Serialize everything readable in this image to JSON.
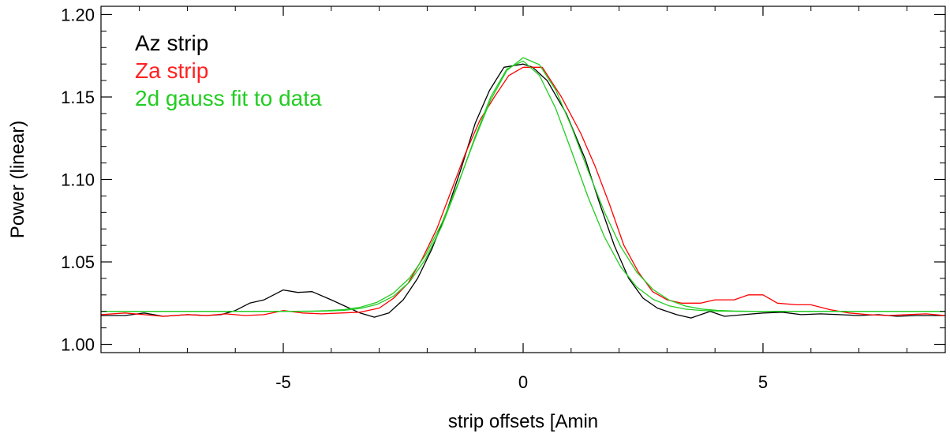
{
  "chart_data": {
    "type": "line",
    "title": "",
    "xlabel": "strip offsets [Amin",
    "ylabel": "Power (linear)",
    "xlim": [
      -8.8,
      8.8
    ],
    "ylim": [
      0.995,
      1.205
    ],
    "x_ticks": [
      -5,
      0,
      5
    ],
    "x_tick_labels": [
      "-5",
      "0",
      "5"
    ],
    "y_ticks": [
      1.0,
      1.05,
      1.1,
      1.15,
      1.2
    ],
    "y_tick_labels": [
      "1.00",
      "1.05",
      "1.10",
      "1.15",
      "1.20"
    ],
    "grid": false,
    "legend_position": "top-left",
    "series": [
      {
        "name": "Az strip",
        "color": "#000000",
        "points": [
          [
            -8.8,
            1.0175
          ],
          [
            -8.3,
            1.0175
          ],
          [
            -7.9,
            1.019
          ],
          [
            -7.5,
            1.017
          ],
          [
            -7.0,
            1.018
          ],
          [
            -6.6,
            1.0175
          ],
          [
            -6.3,
            1.018
          ],
          [
            -6.0,
            1.0205
          ],
          [
            -5.7,
            1.025
          ],
          [
            -5.4,
            1.027
          ],
          [
            -5.0,
            1.033
          ],
          [
            -4.7,
            1.0315
          ],
          [
            -4.4,
            1.032
          ],
          [
            -4.0,
            1.027
          ],
          [
            -3.7,
            1.023
          ],
          [
            -3.4,
            1.019
          ],
          [
            -3.1,
            1.0165
          ],
          [
            -2.8,
            1.019
          ],
          [
            -2.5,
            1.027
          ],
          [
            -2.2,
            1.04
          ],
          [
            -1.9,
            1.058
          ],
          [
            -1.6,
            1.08
          ],
          [
            -1.3,
            1.106
          ],
          [
            -1.0,
            1.134
          ],
          [
            -0.7,
            1.154
          ],
          [
            -0.4,
            1.168
          ],
          [
            0.0,
            1.17
          ],
          [
            0.2,
            1.168
          ],
          [
            0.5,
            1.16
          ],
          [
            0.9,
            1.14
          ],
          [
            1.3,
            1.112
          ],
          [
            1.6,
            1.085
          ],
          [
            1.9,
            1.06
          ],
          [
            2.2,
            1.04
          ],
          [
            2.5,
            1.028
          ],
          [
            2.8,
            1.022
          ],
          [
            3.2,
            1.018
          ],
          [
            3.5,
            1.016
          ],
          [
            3.9,
            1.02
          ],
          [
            4.2,
            1.017
          ],
          [
            4.6,
            1.018
          ],
          [
            5.0,
            1.019
          ],
          [
            5.4,
            1.0195
          ],
          [
            5.8,
            1.018
          ],
          [
            6.2,
            1.0185
          ],
          [
            6.6,
            1.018
          ],
          [
            7.0,
            1.0175
          ],
          [
            7.4,
            1.018
          ],
          [
            7.8,
            1.017
          ],
          [
            8.2,
            1.0175
          ],
          [
            8.8,
            1.0175
          ]
        ]
      },
      {
        "name": "Za strip",
        "color": "#ff0000",
        "points": [
          [
            -8.8,
            1.018
          ],
          [
            -8.3,
            1.019
          ],
          [
            -7.9,
            1.018
          ],
          [
            -7.5,
            1.017
          ],
          [
            -7.0,
            1.018
          ],
          [
            -6.6,
            1.0175
          ],
          [
            -6.2,
            1.0185
          ],
          [
            -5.8,
            1.0175
          ],
          [
            -5.4,
            1.018
          ],
          [
            -5.0,
            1.0205
          ],
          [
            -4.6,
            1.019
          ],
          [
            -4.2,
            1.0185
          ],
          [
            -3.8,
            1.019
          ],
          [
            -3.4,
            1.0195
          ],
          [
            -3.0,
            1.022
          ],
          [
            -2.7,
            1.028
          ],
          [
            -2.4,
            1.037
          ],
          [
            -2.1,
            1.052
          ],
          [
            -1.8,
            1.07
          ],
          [
            -1.5,
            1.093
          ],
          [
            -1.2,
            1.116
          ],
          [
            -0.9,
            1.136
          ],
          [
            -0.6,
            1.15
          ],
          [
            -0.3,
            1.163
          ],
          [
            0.0,
            1.168
          ],
          [
            0.4,
            1.168
          ],
          [
            0.8,
            1.15
          ],
          [
            1.2,
            1.128
          ],
          [
            1.5,
            1.108
          ],
          [
            1.8,
            1.085
          ],
          [
            2.1,
            1.06
          ],
          [
            2.4,
            1.044
          ],
          [
            2.7,
            1.032
          ],
          [
            3.0,
            1.027
          ],
          [
            3.3,
            1.025
          ],
          [
            3.7,
            1.025
          ],
          [
            4.0,
            1.027
          ],
          [
            4.4,
            1.027
          ],
          [
            4.7,
            1.03
          ],
          [
            5.0,
            1.03
          ],
          [
            5.3,
            1.025
          ],
          [
            5.7,
            1.024
          ],
          [
            6.0,
            1.024
          ],
          [
            6.4,
            1.021
          ],
          [
            6.8,
            1.019
          ],
          [
            7.2,
            1.018
          ],
          [
            7.6,
            1.0175
          ],
          [
            8.0,
            1.018
          ],
          [
            8.4,
            1.0185
          ],
          [
            8.8,
            1.0175
          ]
        ]
      },
      {
        "name": "2d gauss fit to data",
        "color": "#22cc22",
        "curves": [
          {
            "a": 1.02,
            "b": 0.152,
            "mu": -0.05,
            "sigma": 1.12
          },
          {
            "a": 1.02,
            "b": 0.154,
            "mu": 0.05,
            "sigma": 1.2
          }
        ]
      }
    ]
  },
  "legend": {
    "items": [
      {
        "label": "Az strip",
        "color": "#000000"
      },
      {
        "label": "Za strip",
        "color": "#ff2222"
      },
      {
        "label": "2d gauss fit to data",
        "color": "#22cc22"
      }
    ]
  }
}
